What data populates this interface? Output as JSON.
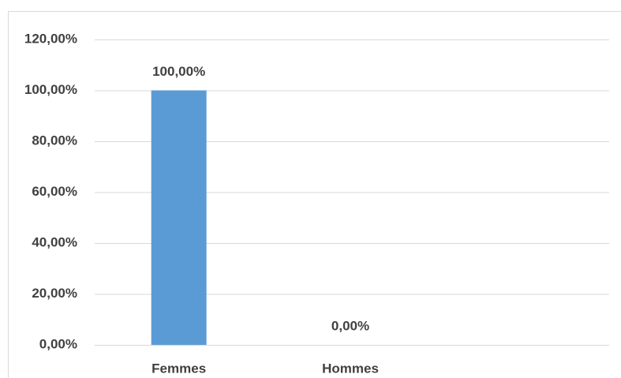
{
  "chart_data": {
    "type": "bar",
    "categories": [
      "Femmes",
      "Hommes",
      null
    ],
    "values": [
      100,
      0,
      null
    ],
    "value_labels": [
      "100,00%",
      "0,00%",
      null
    ],
    "color": "#5b9bd5",
    "ylim": [
      0,
      120
    ],
    "yticks": [
      {
        "value": 0,
        "label": "0,00%"
      },
      {
        "value": 20,
        "label": "20,00%"
      },
      {
        "value": 40,
        "label": "40,00%"
      },
      {
        "value": 60,
        "label": "60,00%"
      },
      {
        "value": 80,
        "label": "80,00%"
      },
      {
        "value": 100,
        "label": "100,00%"
      },
      {
        "value": 120,
        "label": "120,00%"
      }
    ],
    "grid": true
  }
}
